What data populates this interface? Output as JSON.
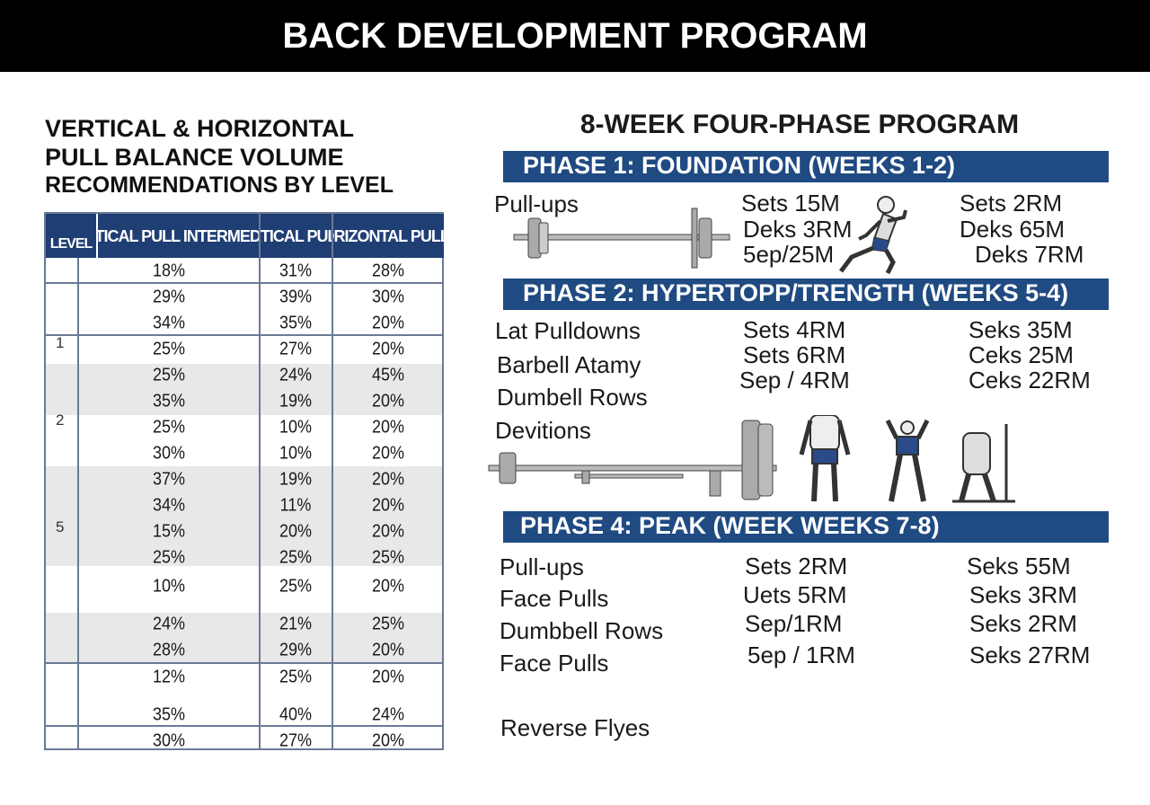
{
  "header": {
    "title": "BACK DEVELOPMENT PROGRAM"
  },
  "left": {
    "title_lines": [
      "VERTICAL & HORIZONTAL",
      "PULL BALANCE VOLUME",
      "RECOMMENDATIONS BY LEVEL"
    ],
    "table": {
      "columns": [
        "LEVEL",
        "VERTICAL PULL INTERMEDIATE",
        "VERTICAL PULL %",
        "HORIZONTAL PULL %"
      ],
      "level_labels": [
        "1",
        "2",
        "5"
      ],
      "rows": [
        [
          "18%",
          "31%",
          "28%"
        ],
        [
          "29%",
          "39%",
          "30%"
        ],
        [
          "34%",
          "35%",
          "20%"
        ],
        [
          "25%",
          "27%",
          "20%"
        ],
        [
          "25%",
          "24%",
          "45%"
        ],
        [
          "35%",
          "19%",
          "20%"
        ],
        [
          "25%",
          "10%",
          "20%"
        ],
        [
          "30%",
          "10%",
          "20%"
        ],
        [
          "37%",
          "19%",
          "20%"
        ],
        [
          "34%",
          "11%",
          "20%"
        ],
        [
          "15%",
          "20%",
          "20%"
        ],
        [
          "25%",
          "25%",
          "25%"
        ],
        [
          "10%",
          "25%",
          "20%"
        ],
        [
          "24%",
          "21%",
          "25%"
        ],
        [
          "28%",
          "29%",
          "20%"
        ],
        [
          "12%",
          "25%",
          "20%"
        ],
        [
          "35%",
          "40%",
          "24%"
        ],
        [
          "30%",
          "27%",
          "20%"
        ]
      ]
    }
  },
  "right": {
    "title": "8-WEEK FOUR-PHASE PROGRAM",
    "phase1": {
      "title": "PHASE 1: FOUNDATION (WEEKS 1-2)",
      "exercises": [
        "Pull-ups"
      ],
      "col2": [
        "Sets 15M",
        "Deks 3RM",
        "5ep/25M"
      ],
      "col3": [
        "Sets 2RM",
        "Deks 65M",
        "Deks 7RM"
      ]
    },
    "phase2": {
      "title": "PHASE 2: HYPERTOPP/TRENGTH (WEEKS 5-4)",
      "exercises": [
        "Lat Pulldowns",
        "Barbell Atamy",
        "Dumbell Rows",
        "Devitions"
      ],
      "col2": [
        "Sets 4RM",
        "Sets 6RM",
        "Sep / 4RM"
      ],
      "col3": [
        "Seks 35M",
        "Ceks 25M",
        "Ceks 22RM"
      ]
    },
    "phase4": {
      "title": "PHASE 4: PEAK (WEEK WEEKS 7-8)",
      "exercises": [
        "Pull-ups",
        "Face Pulls",
        "Dumbbell Rows",
        "Face Pulls",
        "Reverse Flyes"
      ],
      "col2": [
        "Sets 2RM",
        "Uets 5RM",
        "Sep/1RM",
        "5ep / 1RM"
      ],
      "col3": [
        "Seks 55M",
        "Seks 3RM",
        "Seks 2RM",
        "Seks 27RM"
      ]
    }
  },
  "colors": {
    "header_bg": "#000000",
    "banner": "#1f4a82",
    "table_header": "#1f3e73",
    "band": "#e8e8e8"
  }
}
